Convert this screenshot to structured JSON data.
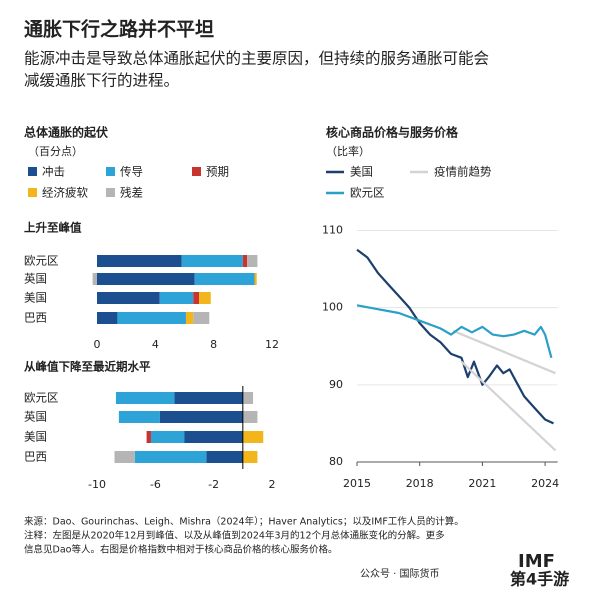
{
  "header": {
    "title": "通胀下行之路并不平坦",
    "subtitle_lines": [
      "能源冲击是导致总体通胀起伏的主要原因，但持续的服务通胀可能会",
      "减缓通胀下行的进程。"
    ]
  },
  "chart_data": [
    {
      "type": "bar",
      "orientation": "horizontal",
      "stacked": true,
      "title": "总体通胀的起伏",
      "subtitle": "（百分点）",
      "series": [
        {
          "name": "冲击",
          "color": "#1b4f8f"
        },
        {
          "name": "传导",
          "color": "#2ea3d8"
        },
        {
          "name": "预期",
          "color": "#c8352e"
        },
        {
          "name": "经济疲软",
          "color": "#f2b51c"
        },
        {
          "name": "残差",
          "color": "#b5b5b5"
        }
      ],
      "panels": [
        {
          "title": "上升至峰值",
          "categories": [
            "欧元区",
            "英国",
            "美国",
            "巴西"
          ],
          "xlim": [
            -0.7,
            12.3
          ],
          "xticks": [
            0,
            4,
            8,
            12
          ],
          "values": [
            [
              5.8,
              6.7,
              4.3,
              1.4
            ],
            [
              4.2,
              4.1,
              2.3,
              4.7
            ],
            [
              0.3,
              0,
              0.4,
              0
            ],
            [
              0,
              0.15,
              0.8,
              0.5
            ],
            [
              0.7,
              -0.3,
              0,
              1.1
            ]
          ]
        },
        {
          "title": "从峰值下降至最近期水平",
          "categories": [
            "欧元区",
            "英国",
            "美国",
            "巴西"
          ],
          "xlim": [
            -10.3,
            2.7
          ],
          "xticks": [
            -10,
            -6,
            -2,
            2
          ],
          "values": [
            [
              -4.7,
              -5.7,
              -4.0,
              -2.5
            ],
            [
              -4.0,
              -2.8,
              -2.3,
              -4.9
            ],
            [
              0,
              0,
              -0.3,
              0
            ],
            [
              0,
              0,
              1.4,
              1.0
            ],
            [
              0.7,
              1.0,
              0,
              -1.4
            ]
          ]
        }
      ]
    },
    {
      "type": "line",
      "title": "核心商品价格与服务价格",
      "subtitle": "（比率）",
      "xlim": [
        2015,
        2024.6
      ],
      "xticks": [
        2015,
        2018,
        2021,
        2024
      ],
      "ylim": [
        80,
        112
      ],
      "yticks": [
        80,
        90,
        100,
        110
      ],
      "series": [
        {
          "name": "美国",
          "color": "#1c3f6e",
          "x": [
            2015,
            2015.5,
            2016,
            2016.5,
            2017,
            2017.5,
            2018,
            2018.5,
            2019,
            2019.5,
            2020,
            2020.3,
            2020.6,
            2021,
            2021.3,
            2021.7,
            2022,
            2022.3,
            2022.7,
            2023,
            2023.5,
            2024,
            2024.4
          ],
          "values": [
            107.5,
            106.5,
            104.5,
            103,
            101.5,
            100,
            98,
            96.5,
            95.5,
            94,
            93.5,
            91,
            93,
            90,
            91,
            92.5,
            91.5,
            92,
            90,
            88.5,
            87,
            85.5,
            85
          ]
        },
        {
          "name": "疫情前趋势",
          "color": "#d3d3d3",
          "x": [
            2019.6,
            2024.5,
            2024.5,
            2020,
            2024.5
          ],
          "values": [
            97,
            91.5,
            null,
            93,
            81.5
          ]
        },
        {
          "name": "欧元区",
          "color": "#2aa0c8",
          "x": [
            2015,
            2016,
            2017,
            2018,
            2019,
            2019.5,
            2020,
            2020.5,
            2021,
            2021.5,
            2022,
            2022.5,
            2023,
            2023.5,
            2023.8,
            2024,
            2024.3
          ],
          "values": [
            100.3,
            99.8,
            99.3,
            98.3,
            97.3,
            96.5,
            97.5,
            96.8,
            97.5,
            96.5,
            96.3,
            96.5,
            97,
            96.5,
            97.5,
            96.5,
            93.5
          ]
        }
      ]
    }
  ],
  "footer": {
    "lines": [
      "来源：Dao、Gourinchas、Leigh、Mishra（2024年）；Haver Analytics；以及IMF工作人员的计算。",
      "注释：左图是从2020年12月到峰值、以及从峰值到2024年3月的12个月总体通胀变化的分解。更多",
      "信息见Dao等人。右图是价格指数中相对于核心商品价格的核心服务价格。"
    ],
    "watermark": "公众号 · 国际货币",
    "logo": "IMF",
    "badge": "第4手游"
  }
}
